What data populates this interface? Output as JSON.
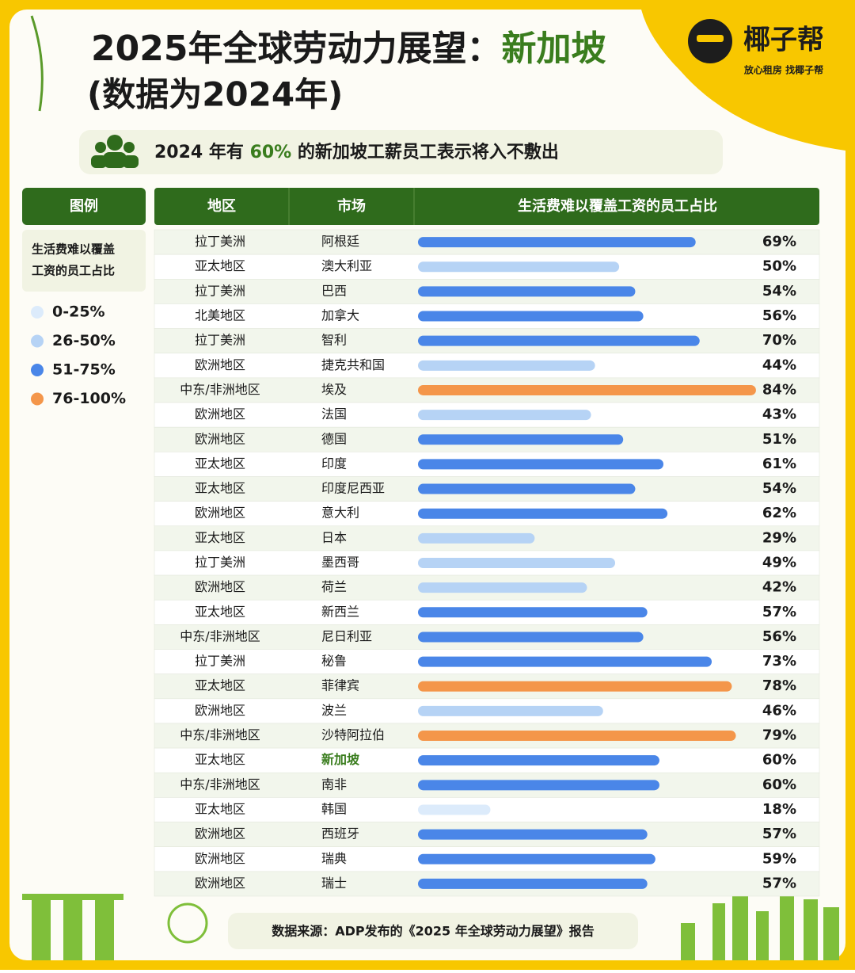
{
  "header": {
    "title_parts": [
      "2025年全球劳动力展望：",
      "新加坡"
    ],
    "title_line2": "(数据为2024年)",
    "subtitle_parts": [
      "2024 年有 ",
      "60%",
      " 的新加坡工薪员工表示将入不敷出"
    ],
    "logo": "椰子帮",
    "logo_slogan": "放心租房 找椰子帮"
  },
  "legend": {
    "title": "图例",
    "subtitle_lines": [
      "生活费难以覆盖",
      "工资的员工占比"
    ],
    "items": [
      {
        "label": "0-25%",
        "color": "#dcebfb"
      },
      {
        "label": "26-50%",
        "color": "#b6d3f5"
      },
      {
        "label": "51-75%",
        "color": "#4a86e8"
      },
      {
        "label": "76-100%",
        "color": "#f4964a"
      }
    ]
  },
  "chart_data": {
    "type": "bar",
    "orientation": "horizontal",
    "columns": [
      "地区",
      "市场",
      "生活费难以覆盖工资的员工占比"
    ],
    "regions": [
      "拉丁美洲",
      "亚太地区",
      "拉丁美洲",
      "北美地区",
      "拉丁美洲",
      "欧洲地区",
      "中东/非洲地区",
      "欧洲地区",
      "欧洲地区",
      "亚太地区",
      "亚太地区",
      "欧洲地区",
      "亚太地区",
      "拉丁美洲",
      "欧洲地区",
      "亚太地区",
      "中东/非洲地区",
      "拉丁美洲",
      "亚太地区",
      "欧洲地区",
      "中东/非洲地区",
      "亚太地区",
      "中东/非洲地区",
      "亚太地区",
      "欧洲地区",
      "欧洲地区",
      "欧洲地区"
    ],
    "categories": [
      "阿根廷",
      "澳大利亚",
      "巴西",
      "加拿大",
      "智利",
      "捷克共和国",
      "埃及",
      "法国",
      "德国",
      "印度",
      "印度尼西亚",
      "意大利",
      "日本",
      "墨西哥",
      "荷兰",
      "新西兰",
      "尼日利亚",
      "秘鲁",
      "菲律宾",
      "波兰",
      "沙特阿拉伯",
      "新加坡",
      "南非",
      "韩国",
      "西班牙",
      "瑞典",
      "瑞士"
    ],
    "values": [
      69,
      50,
      54,
      56,
      70,
      44,
      84,
      43,
      51,
      61,
      54,
      62,
      29,
      49,
      42,
      57,
      56,
      73,
      78,
      46,
      79,
      60,
      60,
      18,
      57,
      59,
      57
    ],
    "value_labels": [
      "69%",
      "50%",
      "54%",
      "56%",
      "70%",
      "44%",
      "84%",
      "43%",
      "51%",
      "61%",
      "54%",
      "62%",
      "29%",
      "49%",
      "42%",
      "57%",
      "56%",
      "73%",
      "78%",
      "46%",
      "79%",
      "60%",
      "60%",
      "18%",
      "57%",
      "59%",
      "57%"
    ],
    "colors": [
      "#4a86e8",
      "#b6d3f5",
      "#4a86e8",
      "#4a86e8",
      "#4a86e8",
      "#b6d3f5",
      "#f4964a",
      "#b6d3f5",
      "#4a86e8",
      "#4a86e8",
      "#4a86e8",
      "#4a86e8",
      "#b6d3f5",
      "#b6d3f5",
      "#b6d3f5",
      "#4a86e8",
      "#4a86e8",
      "#4a86e8",
      "#f4964a",
      "#b6d3f5",
      "#f4964a",
      "#4a86e8",
      "#4a86e8",
      "#dcebfb",
      "#4a86e8",
      "#4a86e8",
      "#4a86e8"
    ],
    "xlim": [
      0,
      85
    ]
  },
  "footer": {
    "source": "数据来源：ADP发布的《2025 年全球劳动力展望》报告"
  }
}
